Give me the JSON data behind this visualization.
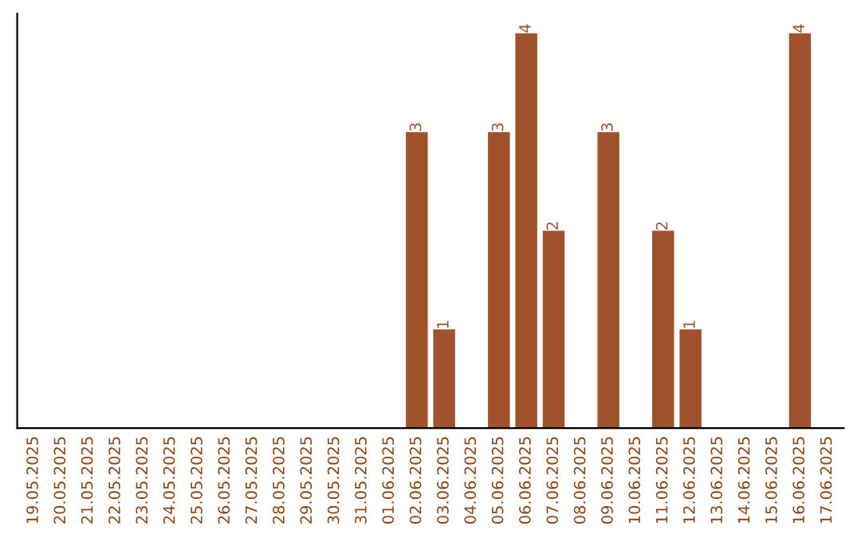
{
  "chart_data": {
    "type": "bar",
    "categories": [
      "19.05.2025",
      "20.05.2025",
      "21.05.2025",
      "22.05.2025",
      "23.05.2025",
      "24.05.2025",
      "25.05.2025",
      "26.05.2025",
      "27.05.2025",
      "28.05.2025",
      "29.05.2025",
      "30.05.2025",
      "31.05.2025",
      "01.06.2025",
      "02.06.2025",
      "03.06.2025",
      "04.06.2025",
      "05.06.2025",
      "06.06.2025",
      "07.06.2025",
      "08.06.2025",
      "09.06.2025",
      "10.06.2025",
      "11.06.2025",
      "12.06.2025",
      "13.06.2025",
      "14.06.2025",
      "15.06.2025",
      "16.06.2025",
      "17.06.2025"
    ],
    "values": [
      null,
      null,
      null,
      null,
      null,
      null,
      null,
      null,
      null,
      null,
      null,
      null,
      null,
      null,
      3,
      1,
      null,
      3,
      4,
      2,
      null,
      3,
      null,
      2,
      1,
      null,
      null,
      null,
      4,
      null
    ],
    "color": "#a0522d",
    "grid": false,
    "legend": false,
    "tick_labels": "x",
    "data_labels": true
  }
}
